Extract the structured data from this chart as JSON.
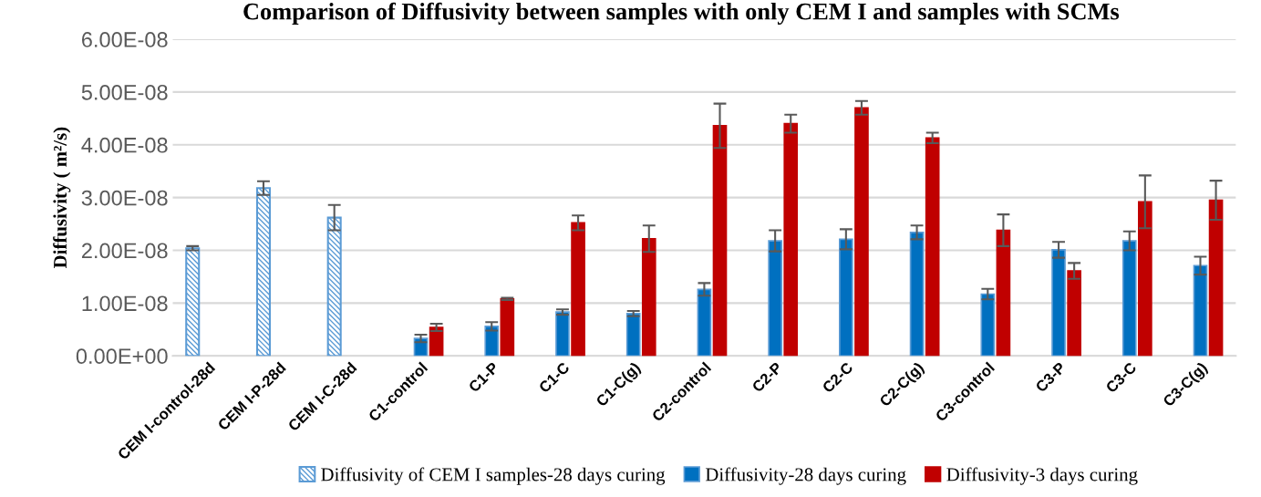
{
  "chart_data": {
    "type": "bar",
    "title": "Comparison of Diffusivity between samples with only CEM I and samples with SCMs",
    "ylabel": "Diffusivity ( m²/s)",
    "categories": [
      "CEM I-control-28d",
      "CEM I-P-28d",
      "CEM I-C-28d",
      "C1-control",
      "C1-P",
      "C1-C",
      "C1-C(g)",
      "C2-control",
      "C2-P",
      "C2-C",
      "C2-C(g)",
      "C3-control",
      "C3-P",
      "C3-C",
      "C3-C(g)"
    ],
    "series": [
      {
        "name": "Diffusivity of CEM I samples-28 days curing",
        "color": "#5b9bd5",
        "values": [
          2.04e-08,
          3.18e-08,
          2.62e-08,
          null,
          null,
          null,
          null,
          null,
          null,
          null,
          null,
          null,
          null,
          null,
          null
        ],
        "errors": [
          4e-10,
          1.3e-09,
          2.4e-09,
          null,
          null,
          null,
          null,
          null,
          null,
          null,
          null,
          null,
          null,
          null,
          null
        ]
      },
      {
        "name": "Diffusivity-28 days curing",
        "color": "#0070c0",
        "values": [
          null,
          null,
          null,
          3.3e-09,
          5.6e-09,
          8.3e-09,
          8e-09,
          1.26e-08,
          2.18e-08,
          2.21e-08,
          2.34e-08,
          1.17e-08,
          2.01e-08,
          2.18e-08,
          1.71e-08
        ],
        "errors": [
          null,
          null,
          null,
          7e-10,
          8e-10,
          5e-10,
          5e-10,
          1.2e-09,
          2e-09,
          1.9e-09,
          1.3e-09,
          1e-09,
          1.5e-09,
          1.8e-09,
          1.7e-09
        ]
      },
      {
        "name": "Diffusivity-3 days curing",
        "color": "#c00000",
        "values": [
          null,
          null,
          null,
          5.4e-09,
          1.08e-08,
          2.52e-08,
          2.22e-08,
          4.36e-08,
          4.4e-08,
          4.7e-08,
          4.13e-08,
          2.38e-08,
          1.61e-08,
          2.92e-08,
          2.95e-08
        ],
        "errors": [
          null,
          null,
          null,
          7e-10,
          2e-10,
          1.4e-09,
          2.5e-09,
          4.2e-09,
          1.7e-09,
          1.3e-09,
          1e-09,
          3e-09,
          1.5e-09,
          5e-09,
          3.7e-09
        ]
      }
    ],
    "ylim": [
      0,
      6e-08
    ],
    "yticks": [
      {
        "value": 0,
        "label": "0.00E+00"
      },
      {
        "value": 1e-08,
        "label": "1.00E-08"
      },
      {
        "value": 2e-08,
        "label": "2.00E-08"
      },
      {
        "value": 3e-08,
        "label": "3.00E-08"
      },
      {
        "value": 4e-08,
        "label": "4.00E-08"
      },
      {
        "value": 5e-08,
        "label": "5.00E-08"
      },
      {
        "value": 6e-08,
        "label": "6.00E-08"
      }
    ],
    "grid": "y",
    "legend": "bottom"
  }
}
